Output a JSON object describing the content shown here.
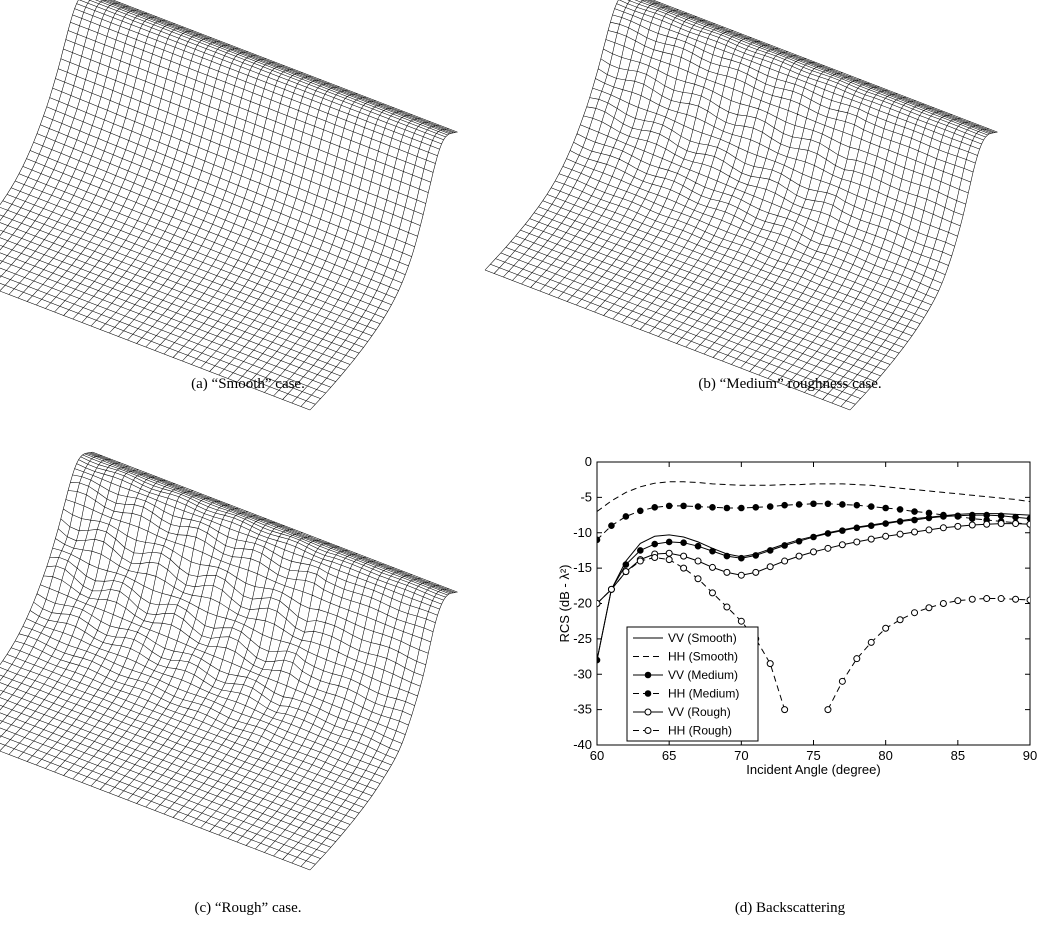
{
  "captions": [
    "(a) “Smooth” case.",
    "(b) “Medium” roughness case.",
    "(c) “Rough” case.",
    "(d) Backscattering"
  ],
  "chart_data": {
    "type": "line",
    "xlabel": "Incident Angle (degree)",
    "ylabel": "RCS (dB - λ²)",
    "x": [
      60,
      61,
      62,
      63,
      64,
      65,
      66,
      67,
      68,
      69,
      70,
      71,
      72,
      73,
      74,
      75,
      76,
      77,
      78,
      79,
      80,
      81,
      82,
      83,
      84,
      85,
      86,
      87,
      88,
      89,
      90
    ],
    "xlim": [
      60,
      90
    ],
    "xticks": [
      60,
      65,
      70,
      75,
      80,
      85,
      90
    ],
    "ylim": [
      -40,
      0
    ],
    "yticks": [
      -40,
      -35,
      -30,
      -25,
      -20,
      -15,
      -10,
      -5,
      0
    ],
    "legend": "lower left",
    "series": [
      {
        "name": "VV (Smooth)",
        "color": "#000",
        "line_style": "solid",
        "marker": "none",
        "values": [
          -28,
          -18,
          -14,
          -11.5,
          -10.5,
          -10.3,
          -10.6,
          -11.3,
          -12.2,
          -13,
          -13.4,
          -13,
          -12.3,
          -11.6,
          -11,
          -10.5,
          -10,
          -9.6,
          -9.2,
          -8.9,
          -8.6,
          -8.3,
          -8,
          -7.8,
          -7.6,
          -7.4,
          -7.3,
          -7.3,
          -7.3,
          -7.4,
          -7.5
        ]
      },
      {
        "name": "HH (Smooth)",
        "color": "#000",
        "line_style": "dashed",
        "marker": "none",
        "values": [
          -7,
          -5.5,
          -4.3,
          -3.5,
          -3,
          -2.8,
          -2.8,
          -2.9,
          -3.1,
          -3.2,
          -3.3,
          -3.3,
          -3.3,
          -3.2,
          -3.2,
          -3.1,
          -3.1,
          -3.1,
          -3.2,
          -3.3,
          -3.5,
          -3.7,
          -3.9,
          -4.1,
          -4.3,
          -4.5,
          -4.7,
          -4.9,
          -5.1,
          -5.3,
          -5.6
        ]
      },
      {
        "name": "VV (Medium)",
        "color": "#000",
        "line_style": "solid",
        "marker": "dot",
        "values": [
          -28,
          -18,
          -14.5,
          -12.5,
          -11.6,
          -11.3,
          -11.4,
          -11.9,
          -12.6,
          -13.3,
          -13.6,
          -13.2,
          -12.5,
          -11.8,
          -11.2,
          -10.6,
          -10.1,
          -9.7,
          -9.3,
          -9,
          -8.7,
          -8.4,
          -8.2,
          -7.9,
          -7.7,
          -7.6,
          -7.5,
          -7.5,
          -7.6,
          -7.8,
          -8
        ]
      },
      {
        "name": "HH (Medium)",
        "color": "#000",
        "line_style": "dashed",
        "marker": "dot",
        "values": [
          -11,
          -9,
          -7.7,
          -6.9,
          -6.4,
          -6.2,
          -6.2,
          -6.3,
          -6.4,
          -6.5,
          -6.5,
          -6.4,
          -6.3,
          -6.1,
          -6,
          -5.9,
          -5.9,
          -6,
          -6.1,
          -6.3,
          -6.5,
          -6.7,
          -7,
          -7.2,
          -7.5,
          -7.7,
          -8,
          -8.2,
          -8.4,
          -8.6,
          -8.8
        ]
      },
      {
        "name": "VV (Rough)",
        "color": "#000",
        "line_style": "solid",
        "marker": "circle",
        "values": [
          -20,
          -18,
          -15.5,
          -13.8,
          -13,
          -12.9,
          -13.3,
          -14,
          -14.9,
          -15.6,
          -16,
          -15.6,
          -14.8,
          -14,
          -13.3,
          -12.7,
          -12.2,
          -11.7,
          -11.3,
          -10.9,
          -10.5,
          -10.2,
          -9.9,
          -9.6,
          -9.3,
          -9.1,
          -8.9,
          -8.8,
          -8.7,
          -8.7,
          -8.8
        ]
      },
      {
        "name": "HH (Rough)",
        "color": "#000",
        "line_style": "dashed",
        "marker": "circle",
        "values": [
          -20,
          -18,
          -15.5,
          -14,
          -13.5,
          -13.8,
          -15,
          -16.5,
          -18.5,
          -20.5,
          -22.5,
          -25,
          -28.5,
          -35,
          null,
          null,
          -35,
          -31,
          -27.8,
          -25.5,
          -23.5,
          -22.3,
          -21.3,
          -20.6,
          -20,
          -19.6,
          -19.4,
          -19.3,
          -19.3,
          -19.4,
          -19.5
        ]
      }
    ]
  }
}
